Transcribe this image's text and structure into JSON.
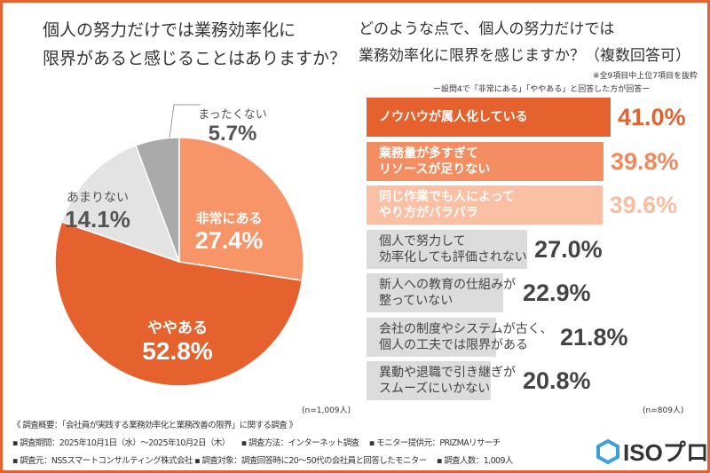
{
  "left": {
    "title_line1": "個人の努力だけでは業務効率化に",
    "title_line2": "限界があると感じることはありますか？",
    "n": "(n=1,009人)"
  },
  "right": {
    "title_line1": "どのような点で、個人の努力だけでは",
    "title_line2": "業務効率化に限界を感じますか？（複数回答可）",
    "note1": "※全9項目中上位7項目を抜粋",
    "note2": "ー設問4で「非常にある」「ややある」と回答した方が回答ー",
    "n": "(n=809人)"
  },
  "chart_data": [
    {
      "type": "pie",
      "start": "top",
      "direction": "clockwise",
      "slices": [
        {
          "label": "非常にある",
          "value": 27.4,
          "display": "27.4%",
          "color": "#f79468"
        },
        {
          "label": "ややある",
          "value": 52.8,
          "display": "52.8%",
          "color": "#e5622f"
        },
        {
          "label": "あまりない",
          "value": 14.1,
          "display": "14.1%",
          "color": "#e3e3e3"
        },
        {
          "label": "まったくない",
          "value": 5.7,
          "display": "5.7%",
          "color": "#aaaaaa"
        }
      ]
    },
    {
      "type": "bar",
      "orientation": "horizontal",
      "xlim": [
        0,
        41.0
      ],
      "bars": [
        {
          "line1": "ノウハウが属人化している",
          "line2": "",
          "value": 41.0,
          "display": "41.0%",
          "color": "#e5622f"
        },
        {
          "line1": "業務量が多すぎて",
          "line2": "リソースが足りない",
          "value": 39.8,
          "display": "39.8%",
          "color": "#f48d62"
        },
        {
          "line1": "同じ作業でも人によって",
          "line2": "やり方がバラバラ",
          "value": 39.6,
          "display": "39.6%",
          "color": "#fbbfa4"
        },
        {
          "line1": "個人で努力して",
          "line2": "効率化しても評価されない",
          "value": 27.0,
          "display": "27.0%",
          "color": "#dcdcdc"
        },
        {
          "line1": "新人への教育の仕組みが",
          "line2": "整っていない",
          "value": 22.9,
          "display": "22.9%",
          "color": "#dcdcdc"
        },
        {
          "line1": "会社の制度やシステムが古く、",
          "line2": "個人の工夫では限界がある",
          "value": 21.8,
          "display": "21.8%",
          "color": "#dcdcdc"
        },
        {
          "line1": "異動や退職で引き継ぎが",
          "line2": "スムーズにいかない",
          "value": 20.8,
          "display": "20.8%",
          "color": "#dcdcdc"
        }
      ]
    }
  ],
  "footer": {
    "line1": "《 調査概要：「会社員が実践する業務効率化と業務改善の限界」に関する調査 》",
    "line2": "▪ 調査期間：2025年10月1日（水）～2025年10月2日（木）　　▪ 調査方法：インターネット調査　 ▪ モニター提供元：PRIZMAリサーチ",
    "line3": "▪ 調査元：NSSスマートコンサルティング株式会社 ▪ 調査対象：調査回答時に20～50代の会社員と回答したモニター　 ▪ 調査人数：1,009人",
    "logo": "ISOプロ"
  }
}
